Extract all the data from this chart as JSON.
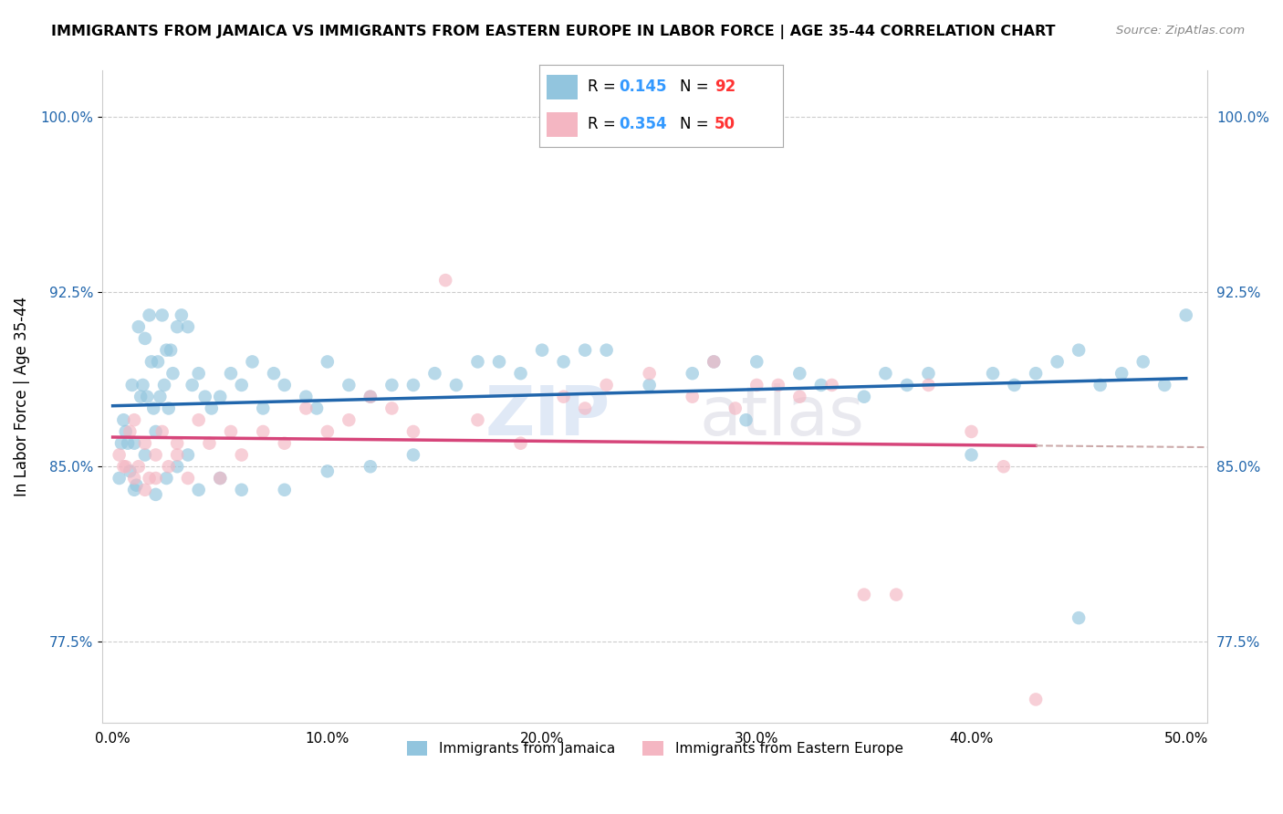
{
  "title": "IMMIGRANTS FROM JAMAICA VS IMMIGRANTS FROM EASTERN EUROPE IN LABOR FORCE | AGE 35-44 CORRELATION CHART",
  "source": "Source: ZipAtlas.com",
  "ylabel": "In Labor Force | Age 35-44",
  "xlim": [
    -0.5,
    51.0
  ],
  "ylim": [
    74.0,
    102.0
  ],
  "yticks": [
    77.5,
    85.0,
    92.5,
    100.0
  ],
  "ytick_labels": [
    "77.5%",
    "85.0%",
    "92.5%",
    "100.0%"
  ],
  "xticks": [
    0.0,
    10.0,
    20.0,
    30.0,
    40.0,
    50.0
  ],
  "xtick_labels": [
    "0.0%",
    "10.0%",
    "20.0%",
    "30.0%",
    "40.0%",
    "50.0%"
  ],
  "legend_R1": "0.145",
  "legend_N1": "92",
  "legend_R2": "0.354",
  "legend_N2": "50",
  "blue_dot_color": "#92c5de",
  "pink_dot_color": "#f4b6c2",
  "blue_line_color": "#2166ac",
  "pink_line_color": "#d6457a",
  "dash_color": "#ccaaaa",
  "R_N_blue": "#3399ff",
  "R_N_red": "#ff3333",
  "watermark_color": "#c8d8f0",
  "jamaica_x": [
    0.3,
    0.5,
    0.7,
    0.8,
    0.9,
    1.0,
    1.1,
    1.2,
    1.3,
    1.4,
    1.5,
    1.6,
    1.7,
    1.8,
    1.9,
    2.0,
    2.1,
    2.2,
    2.3,
    2.4,
    2.5,
    2.6,
    2.7,
    2.8,
    3.0,
    3.2,
    3.5,
    3.7,
    4.0,
    4.3,
    4.6,
    5.0,
    5.5,
    6.0,
    6.5,
    7.0,
    7.5,
    8.0,
    9.0,
    9.5,
    10.0,
    11.0,
    12.0,
    13.0,
    14.0,
    15.0,
    16.0,
    17.0,
    18.0,
    19.0,
    20.0,
    21.0,
    22.0,
    23.0,
    25.0,
    27.0,
    28.0,
    29.5,
    30.0,
    32.0,
    33.0,
    35.0,
    36.0,
    37.0,
    38.0,
    40.0,
    41.0,
    42.0,
    43.0,
    44.0,
    45.0,
    46.0,
    47.0,
    48.0,
    49.0,
    50.0,
    0.4,
    0.6,
    1.0,
    1.5,
    2.0,
    2.5,
    3.0,
    3.5,
    4.0,
    5.0,
    6.0,
    8.0,
    10.0,
    12.0,
    14.0,
    45.0
  ],
  "jamaica_y": [
    84.5,
    87.0,
    86.0,
    84.8,
    88.5,
    86.0,
    84.2,
    91.0,
    88.0,
    88.5,
    90.5,
    88.0,
    91.5,
    89.5,
    87.5,
    86.5,
    89.5,
    88.0,
    91.5,
    88.5,
    90.0,
    87.5,
    90.0,
    89.0,
    91.0,
    91.5,
    91.0,
    88.5,
    89.0,
    88.0,
    87.5,
    88.0,
    89.0,
    88.5,
    89.5,
    87.5,
    89.0,
    88.5,
    88.0,
    87.5,
    89.5,
    88.5,
    88.0,
    88.5,
    88.5,
    89.0,
    88.5,
    89.5,
    89.5,
    89.0,
    90.0,
    89.5,
    90.0,
    90.0,
    88.5,
    89.0,
    89.5,
    87.0,
    89.5,
    89.0,
    88.5,
    88.0,
    89.0,
    88.5,
    89.0,
    85.5,
    89.0,
    88.5,
    89.0,
    89.5,
    90.0,
    88.5,
    89.0,
    89.5,
    88.5,
    91.5,
    86.0,
    86.5,
    84.0,
    85.5,
    83.8,
    84.5,
    85.0,
    85.5,
    84.0,
    84.5,
    84.0,
    84.0,
    84.8,
    85.0,
    85.5,
    78.5
  ],
  "eastern_x": [
    0.3,
    0.6,
    0.8,
    1.0,
    1.2,
    1.5,
    1.7,
    2.0,
    2.3,
    2.6,
    3.0,
    3.5,
    4.0,
    4.5,
    5.0,
    5.5,
    6.0,
    7.0,
    8.0,
    9.0,
    10.0,
    11.0,
    12.0,
    13.0,
    14.0,
    15.5,
    17.0,
    19.0,
    21.0,
    22.0,
    23.0,
    25.0,
    27.0,
    28.0,
    29.0,
    30.0,
    31.0,
    32.0,
    33.5,
    35.0,
    36.5,
    38.0,
    40.0,
    41.5,
    43.0,
    0.5,
    1.0,
    1.5,
    2.0,
    3.0
  ],
  "eastern_y": [
    85.5,
    85.0,
    86.5,
    87.0,
    85.0,
    86.0,
    84.5,
    85.5,
    86.5,
    85.0,
    85.5,
    84.5,
    87.0,
    86.0,
    84.5,
    86.5,
    85.5,
    86.5,
    86.0,
    87.5,
    86.5,
    87.0,
    88.0,
    87.5,
    86.5,
    93.0,
    87.0,
    86.0,
    88.0,
    87.5,
    88.5,
    89.0,
    88.0,
    89.5,
    87.5,
    88.5,
    88.5,
    88.0,
    88.5,
    79.5,
    79.5,
    88.5,
    86.5,
    85.0,
    75.0,
    85.0,
    84.5,
    84.0,
    84.5,
    86.0
  ]
}
